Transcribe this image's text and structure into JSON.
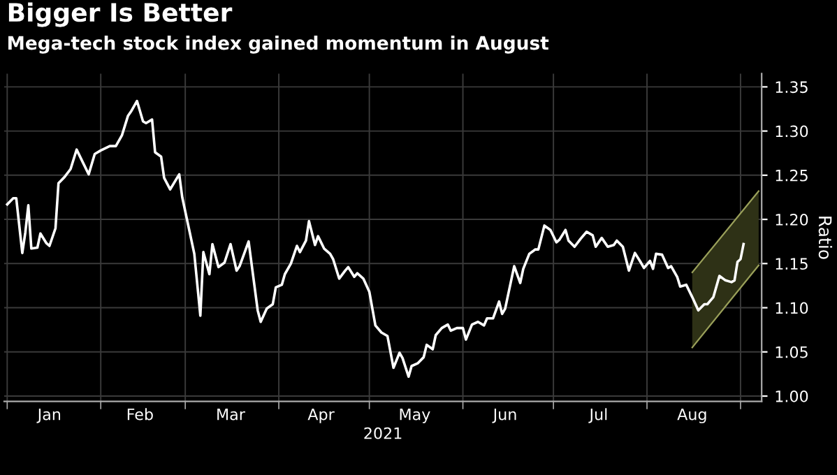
{
  "chart_data": {
    "type": "line",
    "title": "Bigger Is Better",
    "subtitle": "Mega-tech stock index gained momentum in August",
    "xlabel": "2021",
    "ylabel": "Ratio",
    "xlim": [
      "2020-12-31",
      "2021-09-08"
    ],
    "ylim": [
      0.994,
      1.365
    ],
    "xticks": [
      {
        "value": "2021-01-01",
        "label": null
      },
      {
        "value": "2021-01-15",
        "label": "Jan"
      },
      {
        "value": "2021-02-01",
        "label": null
      },
      {
        "value": "2021-02-14",
        "label": "Feb"
      },
      {
        "value": "2021-03-01",
        "label": null
      },
      {
        "value": "2021-03-16",
        "label": "Mar"
      },
      {
        "value": "2021-04-01",
        "label": null
      },
      {
        "value": "2021-04-15",
        "label": "Apr"
      },
      {
        "value": "2021-05-01",
        "label": null
      },
      {
        "value": "2021-05-16",
        "label": "May"
      },
      {
        "value": "2021-06-01",
        "label": null
      },
      {
        "value": "2021-06-15",
        "label": "Jun"
      },
      {
        "value": "2021-07-01",
        "label": null
      },
      {
        "value": "2021-07-16",
        "label": "Jul"
      },
      {
        "value": "2021-08-01",
        "label": null
      },
      {
        "value": "2021-08-16",
        "label": "Aug"
      },
      {
        "value": "2021-09-01",
        "label": null
      }
    ],
    "yticks": [
      {
        "value": 1.0,
        "label": "1.00"
      },
      {
        "value": 1.05,
        "label": "1.05"
      },
      {
        "value": 1.1,
        "label": "1.10"
      },
      {
        "value": 1.15,
        "label": "1.15"
      },
      {
        "value": 1.2,
        "label": "1.20"
      },
      {
        "value": 1.25,
        "label": "1.25"
      },
      {
        "value": 1.3,
        "label": "1.30"
      },
      {
        "value": 1.35,
        "label": "1.35"
      }
    ],
    "grid": true,
    "legend": false,
    "series": [
      {
        "color": "#9aa05a",
        "x": [
          "2021-08-16",
          "2021-09-07"
        ],
        "values": [
          1.14,
          1.232
        ],
        "lower": [
          1.055,
          1.148
        ],
        "upper": [
          1.14,
          1.232
        ]
      },
      {
        "color": "#9aa05a",
        "x": [
          "2021-08-16",
          "2021-09-07"
        ],
        "values": [
          1.055,
          1.148
        ]
      },
      {
        "color": "#ffffff",
        "x": [
          "2021-01-01",
          "2021-01-03",
          "2021-01-04",
          "2021-01-06",
          "2021-01-07",
          "2021-01-08",
          "2021-01-09",
          "2021-01-11",
          "2021-01-12",
          "2021-01-14",
          "2021-01-15",
          "2021-01-17",
          "2021-01-18",
          "2021-01-20",
          "2021-01-22",
          "2021-01-24",
          "2021-01-26",
          "2021-01-28",
          "2021-01-30",
          "2021-02-01",
          "2021-02-04",
          "2021-02-06",
          "2021-02-08",
          "2021-02-10",
          "2021-02-11",
          "2021-02-13",
          "2021-02-15",
          "2021-02-16",
          "2021-02-18",
          "2021-02-19",
          "2021-02-21",
          "2021-02-22",
          "2021-02-24",
          "2021-02-27",
          "2021-02-28",
          "2021-03-02",
          "2021-03-04",
          "2021-03-06",
          "2021-03-07",
          "2021-03-09",
          "2021-03-10",
          "2021-03-12",
          "2021-03-14",
          "2021-03-16",
          "2021-03-18",
          "2021-03-19",
          "2021-03-22",
          "2021-03-25",
          "2021-03-26",
          "2021-03-28",
          "2021-03-30",
          "2021-03-31",
          "2021-04-02",
          "2021-04-03",
          "2021-04-05",
          "2021-04-07",
          "2021-04-08",
          "2021-04-10",
          "2021-04-11",
          "2021-04-13",
          "2021-04-14",
          "2021-04-16",
          "2021-04-18",
          "2021-04-19",
          "2021-04-21",
          "2021-04-23",
          "2021-04-24",
          "2021-04-26",
          "2021-04-27",
          "2021-04-29",
          "2021-05-01",
          "2021-05-03",
          "2021-05-05",
          "2021-05-07",
          "2021-05-09",
          "2021-05-11",
          "2021-05-12",
          "2021-05-14",
          "2021-05-15",
          "2021-05-17",
          "2021-05-19",
          "2021-05-20",
          "2021-05-22",
          "2021-05-23",
          "2021-05-25",
          "2021-05-27",
          "2021-05-28",
          "2021-05-30",
          "2021-06-01",
          "2021-06-02",
          "2021-06-04",
          "2021-06-06",
          "2021-06-08",
          "2021-06-09",
          "2021-06-11",
          "2021-06-13",
          "2021-06-14",
          "2021-06-15",
          "2021-06-17",
          "2021-06-18",
          "2021-06-20",
          "2021-06-21",
          "2021-06-23",
          "2021-06-25",
          "2021-06-26",
          "2021-06-28",
          "2021-06-30",
          "2021-07-02",
          "2021-07-03",
          "2021-07-05",
          "2021-07-06",
          "2021-07-08",
          "2021-07-10",
          "2021-07-12",
          "2021-07-14",
          "2021-07-15",
          "2021-07-17",
          "2021-07-19",
          "2021-07-21",
          "2021-07-22",
          "2021-07-24",
          "2021-07-26",
          "2021-07-28",
          "2021-07-30",
          "2021-07-31",
          "2021-08-02",
          "2021-08-03",
          "2021-08-04",
          "2021-08-06",
          "2021-08-08",
          "2021-08-09",
          "2021-08-11",
          "2021-08-12",
          "2021-08-14",
          "2021-08-16",
          "2021-08-18",
          "2021-08-20",
          "2021-08-21",
          "2021-08-23",
          "2021-08-25",
          "2021-08-27",
          "2021-08-29",
          "2021-08-30",
          "2021-08-31",
          "2021-09-01",
          "2021-09-02"
        ],
        "values": [
          1.217,
          1.224,
          1.224,
          1.162,
          1.185,
          1.216,
          1.167,
          1.168,
          1.184,
          1.173,
          1.17,
          1.19,
          1.241,
          1.248,
          1.257,
          1.279,
          1.265,
          1.251,
          1.274,
          1.278,
          1.283,
          1.283,
          1.295,
          1.317,
          1.322,
          1.334,
          1.311,
          1.309,
          1.313,
          1.276,
          1.271,
          1.247,
          1.234,
          1.251,
          1.225,
          1.193,
          1.161,
          1.091,
          1.163,
          1.138,
          1.172,
          1.146,
          1.151,
          1.172,
          1.142,
          1.147,
          1.175,
          1.097,
          1.084,
          1.099,
          1.104,
          1.123,
          1.126,
          1.138,
          1.15,
          1.17,
          1.163,
          1.176,
          1.198,
          1.171,
          1.181,
          1.167,
          1.161,
          1.155,
          1.133,
          1.142,
          1.146,
          1.135,
          1.139,
          1.133,
          1.118,
          1.08,
          1.072,
          1.068,
          1.032,
          1.049,
          1.043,
          1.022,
          1.034,
          1.037,
          1.044,
          1.058,
          1.053,
          1.069,
          1.077,
          1.081,
          1.074,
          1.077,
          1.077,
          1.064,
          1.081,
          1.084,
          1.08,
          1.088,
          1.088,
          1.107,
          1.093,
          1.099,
          1.131,
          1.147,
          1.128,
          1.144,
          1.161,
          1.166,
          1.166,
          1.193,
          1.188,
          1.174,
          1.177,
          1.188,
          1.176,
          1.169,
          1.178,
          1.186,
          1.182,
          1.169,
          1.179,
          1.169,
          1.171,
          1.176,
          1.169,
          1.142,
          1.162,
          1.151,
          1.145,
          1.153,
          1.144,
          1.161,
          1.16,
          1.145,
          1.147,
          1.135,
          1.124,
          1.126,
          1.112,
          1.097,
          1.104,
          1.104,
          1.112,
          1.136,
          1.131,
          1.129,
          1.131,
          1.152,
          1.155,
          1.172
        ]
      }
    ]
  }
}
